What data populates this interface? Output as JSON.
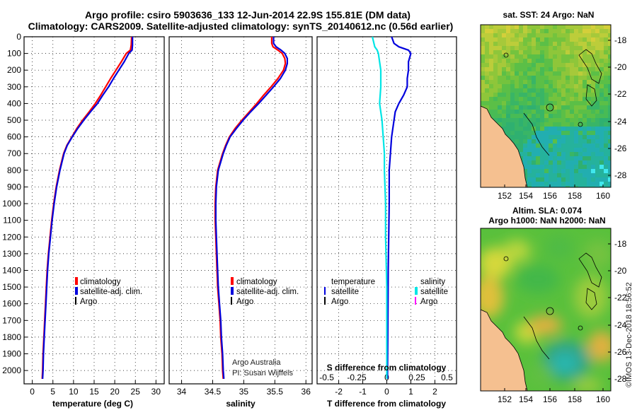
{
  "header": {
    "title_line1": "Argo profile: csiro 5903636_133 12-Jun-2014 22.9S 155.81E (DM data)",
    "title_line2": "Climatology: CARS2009. Satellite-adjusted climatology: synTS_20140612.nc (0.56d earlier)"
  },
  "colors": {
    "climatology": "#ff0000",
    "satellite": "#0000dd",
    "argo": "#000000",
    "s_satellite": "#00e5e5",
    "s_argo": "#ff00ff",
    "land": "#f5c090"
  },
  "chart_data": [
    {
      "type": "line",
      "id": "temperature",
      "xlabel": "temperature (deg C)",
      "ylabel": "",
      "xlim": [
        -2,
        32
      ],
      "ylim": [
        2080,
        0
      ],
      "x_ticks": [
        "0",
        "5",
        "10",
        "15",
        "20",
        "25",
        "30"
      ],
      "y_ticks": [
        "0",
        "100",
        "200",
        "300",
        "400",
        "500",
        "600",
        "700",
        "800",
        "900",
        "1000",
        "1100",
        "1200",
        "1300",
        "1400",
        "1500",
        "1600",
        "1700",
        "1800",
        "1900",
        "2000"
      ],
      "legend": [
        "climatology",
        "satellite-adj. clim.",
        "Argo"
      ],
      "series": [
        {
          "name": "climatology",
          "depth": [
            0,
            50,
            80,
            100,
            150,
            200,
            250,
            300,
            350,
            400,
            450,
            500,
            550,
            600,
            650,
            700,
            800,
            900,
            1000,
            1100,
            1200,
            1300,
            1400,
            1500,
            1600,
            1700,
            1800,
            1900,
            2000,
            2050
          ],
          "values": [
            24.1,
            24.0,
            23.8,
            22.8,
            21.6,
            20.3,
            19.0,
            17.8,
            16.6,
            15.3,
            13.8,
            12.2,
            10.8,
            9.6,
            8.4,
            7.6,
            6.6,
            5.8,
            5.2,
            4.7,
            4.3,
            3.9,
            3.6,
            3.4,
            3.2,
            3.0,
            2.8,
            2.6,
            2.5,
            2.4
          ]
        },
        {
          "name": "satellite-adj. clim.",
          "depth": [
            0,
            50,
            80,
            100,
            150,
            200,
            250,
            300,
            350,
            400,
            450,
            500,
            550,
            600,
            650,
            700,
            800,
            900,
            1000,
            1100,
            1200,
            1300,
            1400,
            1500,
            1600,
            1700,
            1800,
            1900,
            2000,
            2050
          ],
          "values": [
            24.3,
            24.3,
            24.2,
            23.4,
            22.3,
            21.0,
            19.7,
            18.5,
            17.1,
            15.8,
            14.1,
            12.5,
            11.0,
            9.7,
            8.5,
            7.7,
            6.7,
            5.9,
            5.3,
            4.8,
            4.4,
            4.0,
            3.7,
            3.5,
            3.3,
            3.1,
            2.9,
            2.7,
            2.6,
            2.5
          ]
        }
      ]
    },
    {
      "type": "line",
      "id": "salinity",
      "xlabel": "salinity",
      "xlim": [
        33.8,
        36.1
      ],
      "ylim": [
        2080,
        0
      ],
      "x_ticks": [
        "34",
        "34.5",
        "35",
        "35.5",
        "36"
      ],
      "legend": [
        "climatology",
        "satellite-adj. clim.",
        "Argo"
      ],
      "annotation": [
        "Argo Australia",
        "PI: Susan Wijffels"
      ],
      "series": [
        {
          "name": "climatology",
          "depth": [
            0,
            40,
            60,
            80,
            100,
            130,
            160,
            200,
            250,
            300,
            350,
            400,
            450,
            500,
            550,
            600,
            650,
            700,
            750,
            800,
            900,
            1000,
            1100,
            1200,
            1300,
            1400,
            1500,
            1600,
            1700,
            1800,
            1900,
            2000,
            2050
          ],
          "values": [
            35.45,
            35.45,
            35.47,
            35.55,
            35.62,
            35.66,
            35.67,
            35.64,
            35.55,
            35.44,
            35.32,
            35.21,
            35.09,
            34.97,
            34.86,
            34.77,
            34.71,
            34.66,
            34.62,
            34.58,
            34.55,
            34.54,
            34.54,
            34.55,
            34.56,
            34.57,
            34.58,
            34.6,
            34.62,
            34.63,
            34.65,
            34.66,
            34.67
          ]
        },
        {
          "name": "satellite-adj. clim.",
          "depth": [
            0,
            40,
            60,
            80,
            100,
            130,
            160,
            200,
            250,
            300,
            350,
            400,
            450,
            500,
            550,
            600,
            650,
            700,
            750,
            800,
            900,
            1000,
            1100,
            1200,
            1300,
            1400,
            1500,
            1600,
            1700,
            1800,
            1900,
            2000,
            2050
          ],
          "values": [
            35.48,
            35.48,
            35.52,
            35.6,
            35.66,
            35.7,
            35.7,
            35.67,
            35.59,
            35.48,
            35.36,
            35.24,
            35.11,
            34.99,
            34.88,
            34.78,
            34.72,
            34.67,
            34.63,
            34.59,
            34.56,
            34.55,
            34.55,
            34.56,
            34.57,
            34.58,
            34.59,
            34.61,
            34.63,
            34.64,
            34.66,
            34.67,
            34.68
          ]
        }
      ]
    },
    {
      "type": "line",
      "id": "difference",
      "xlabel": "T difference from climatology",
      "xlabel_top": "S difference from climatology",
      "xlim": [
        -2.9,
        2.9
      ],
      "ylim": [
        2080,
        0
      ],
      "x_ticks": [
        "-2",
        "-1",
        "0",
        "1",
        "2"
      ],
      "x_ticks_top": [
        "-0.5",
        "-0.25",
        "0",
        "0.25",
        "0.5"
      ],
      "legend_left_title": "temperature",
      "legend_right_title": "salinity",
      "legend_left": [
        "satellite",
        "Argo"
      ],
      "legend_right": [
        "satellite",
        "Argo"
      ],
      "series": [
        {
          "name": "temperature satellite",
          "depth": [
            0,
            40,
            60,
            80,
            100,
            150,
            200,
            250,
            300,
            350,
            400,
            450,
            500,
            600,
            700,
            800,
            900,
            1000,
            1200,
            1400,
            1600,
            1800,
            2000,
            2050
          ],
          "values": [
            0.2,
            0.3,
            0.5,
            0.9,
            1.0,
            0.9,
            0.9,
            0.85,
            0.85,
            0.7,
            0.5,
            0.35,
            0.3,
            0.2,
            0.15,
            0.1,
            0.1,
            0.1,
            0.08,
            0.06,
            0.05,
            0.04,
            0.03,
            0.03
          ]
        },
        {
          "name": "salinity satellite",
          "depth": [
            0,
            60,
            80,
            100,
            200,
            300,
            400,
            500,
            600,
            700,
            800,
            1000,
            1200,
            1500,
            1800,
            2050
          ],
          "values": [
            -0.12,
            -0.1,
            -0.08,
            -0.07,
            -0.05,
            -0.05,
            -0.06,
            -0.04,
            -0.03,
            -0.02,
            -0.02,
            -0.01,
            -0.01,
            0.0,
            0.0,
            0.0
          ]
        }
      ]
    },
    {
      "type": "heatmap",
      "id": "sst-map",
      "title": "sat. SST: 24 Argo: NaN",
      "x_ticks": [
        "152",
        "154",
        "156",
        "158",
        "160"
      ],
      "y_ticks": [
        "-18",
        "-20",
        "-22",
        "-24",
        "-26",
        "-28"
      ]
    },
    {
      "type": "heatmap",
      "id": "sla-map",
      "title_line1": "Altim. SLA: 0.074",
      "title_line2": "Argo h1000: NaN h2000: NaN",
      "x_ticks": [
        "152",
        "154",
        "156",
        "158",
        "160"
      ],
      "y_ticks": [
        "-18",
        "-20",
        "-22",
        "-24",
        "-26",
        "-28"
      ]
    }
  ],
  "footer": {
    "stamp": "©IMOS 13-Dec-2018 18:56:52"
  }
}
